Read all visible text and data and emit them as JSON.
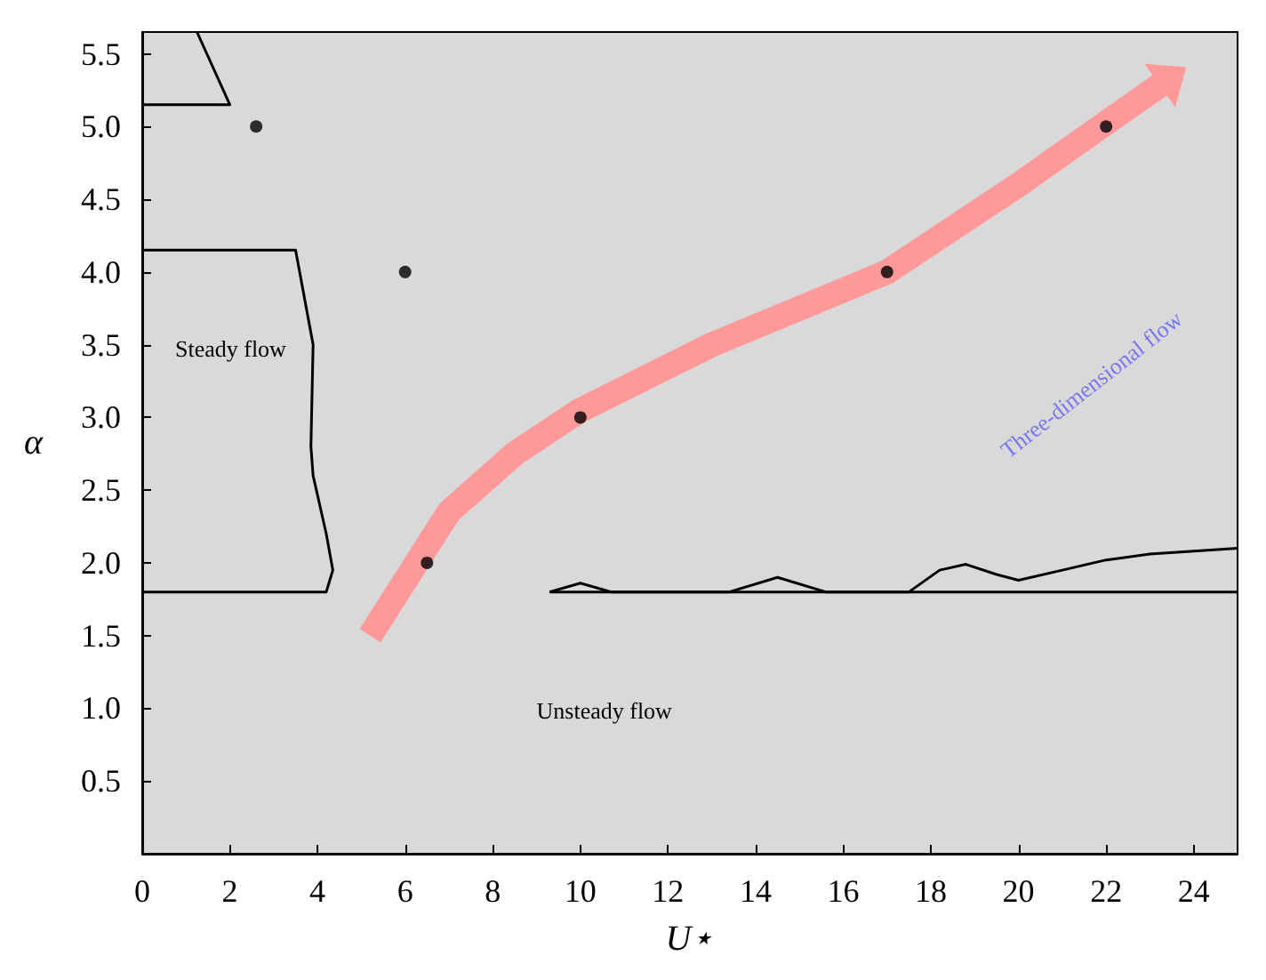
{
  "chart_data": {
    "type": "scatter",
    "xlabel": "U⋆",
    "ylabel": "α",
    "xlim": [
      0,
      25
    ],
    "xticks": [
      0,
      2,
      4,
      6,
      8,
      10,
      12,
      14,
      16,
      18,
      20,
      22,
      24
    ],
    "ylim": [
      0,
      5.65
    ],
    "yticks": [
      {
        "value": 0.5,
        "label": "0.5"
      },
      {
        "value": 1,
        "label": "1.0"
      },
      {
        "value": 1.5,
        "label": "1.5"
      },
      {
        "value": 2,
        "label": "2.0"
      },
      {
        "value": 2.5,
        "label": "2.5"
      },
      {
        "value": 3,
        "label": "3.0"
      },
      {
        "value": 3.5,
        "label": "3.5"
      },
      {
        "value": 4,
        "label": "4.0"
      },
      {
        "value": 4.5,
        "label": "4.5"
      },
      {
        "value": 5,
        "label": "5.0"
      },
      {
        "value": 5.5,
        "label": "5.5"
      }
    ],
    "grid": false,
    "annotations": [
      "Steady flow",
      "Unsteady flow",
      "Three-dimensional flow"
    ],
    "series": [
      {
        "type": "line",
        "marker": "none",
        "color": "#ff9999",
        "x": [
          5.2,
          7,
          8.5,
          10,
          13,
          17,
          20,
          23.3
        ],
        "values": [
          1.5,
          2.35,
          2.75,
          3.05,
          3.5,
          4.0,
          4.6,
          5.3
        ]
      },
      {
        "marker": "circle",
        "color": "#000000",
        "x": [
          2.6,
          6,
          6.5,
          10,
          17,
          22
        ],
        "values": [
          5.0,
          4.0,
          2.0,
          3.0,
          4.0,
          5.0
        ]
      },
      {
        "type": "line",
        "marker": "none",
        "color": "#000000",
        "x": [
          0,
          3.5,
          3.9,
          3.85,
          3.9,
          4.2,
          4.35,
          4.2,
          0
        ],
        "values": [
          4.15,
          4.15,
          3.5,
          2.8,
          2.6,
          2.2,
          1.95,
          1.8,
          1.8
        ]
      },
      {
        "type": "line",
        "marker": "none",
        "color": "#000000",
        "x": [
          0,
          2,
          1.25
        ],
        "values": [
          5.15,
          5.15,
          5.65
        ]
      },
      {
        "type": "line",
        "marker": "none",
        "color": "#000000",
        "x": [
          9.3,
          25
        ],
        "values": [
          1.8,
          1.8
        ]
      },
      {
        "type": "line",
        "marker": "none",
        "color": "#000000",
        "x": [
          9.3,
          10,
          10.7,
          13.4,
          14.5,
          15.6,
          17.5,
          18.2,
          18.8,
          19.5,
          20,
          21,
          22,
          23,
          24,
          25
        ],
        "values": [
          1.8,
          1.86,
          1.8,
          1.8,
          1.9,
          1.8,
          1.8,
          1.95,
          1.99,
          1.92,
          1.88,
          1.95,
          2.02,
          2.06,
          2.08,
          2.1
        ]
      }
    ]
  }
}
